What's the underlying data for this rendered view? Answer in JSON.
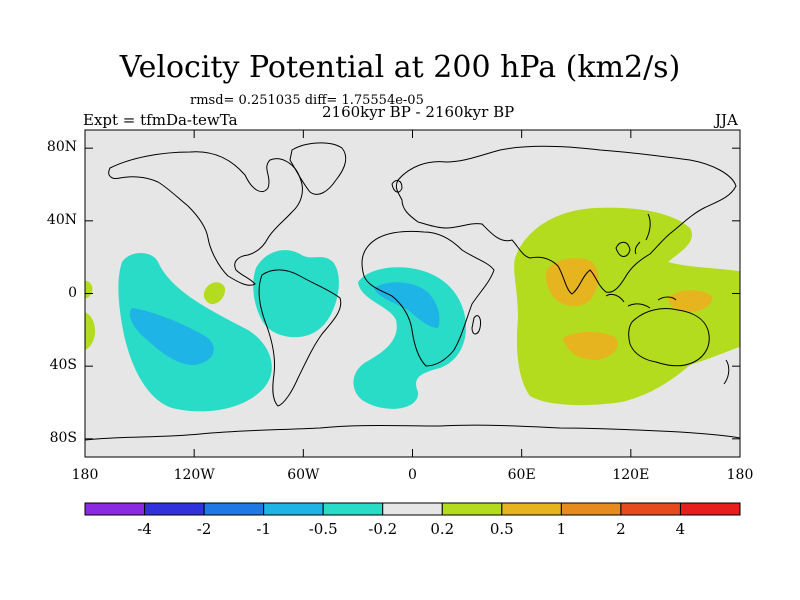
{
  "title": "Velocity Potential at 200 hPa (km2/s)",
  "rmsd_line": "rmsd= 0.251035 diff= 1.75554e-05",
  "expt_label": "Expt = tfmDa-tewTa",
  "period_label": "2160kyr BP - 2160kyr BP",
  "season_label": "JJA",
  "map": {
    "lat_ticks": [
      "80N",
      "40N",
      "0",
      "40S",
      "80S"
    ],
    "lon_ticks": [
      "180",
      "120W",
      "60W",
      "0",
      "60E",
      "120E",
      "180"
    ],
    "background_color": "#e6e6e6"
  },
  "colorbar": {
    "colors": [
      "#8a2be2",
      "#3232dc",
      "#1e78e6",
      "#1eb4e6",
      "#28dcc8",
      "#e6e6e6",
      "#b4dc1e",
      "#e6b41e",
      "#e68c1e",
      "#e64b1e",
      "#e61e1e"
    ],
    "labels": [
      "-4",
      "-2",
      "-1",
      "-0.5",
      "-0.2",
      "0.2",
      "0.5",
      "1",
      "2",
      "4"
    ]
  },
  "regions": [
    {
      "name": "central-pacific-negative",
      "level": "-0.2"
    },
    {
      "name": "central-pacific-core",
      "level": "-0.5"
    },
    {
      "name": "south-america-negative",
      "level": "-0.2"
    },
    {
      "name": "atlantic-africa-negative",
      "level": "-0.2"
    },
    {
      "name": "atlantic-core",
      "level": "-0.5"
    },
    {
      "name": "asia-indian-ocean-positive",
      "level": "0.2"
    },
    {
      "name": "south-asia-core",
      "level": "0.5"
    },
    {
      "name": "indian-ocean-core",
      "level": "0.5"
    },
    {
      "name": "new-guinea-core",
      "level": "0.5"
    },
    {
      "name": "pacific-small-positive",
      "level": "0.2"
    },
    {
      "name": "dateline-positive-north",
      "level": "0.2"
    },
    {
      "name": "dateline-positive-south",
      "level": "0.2"
    }
  ]
}
